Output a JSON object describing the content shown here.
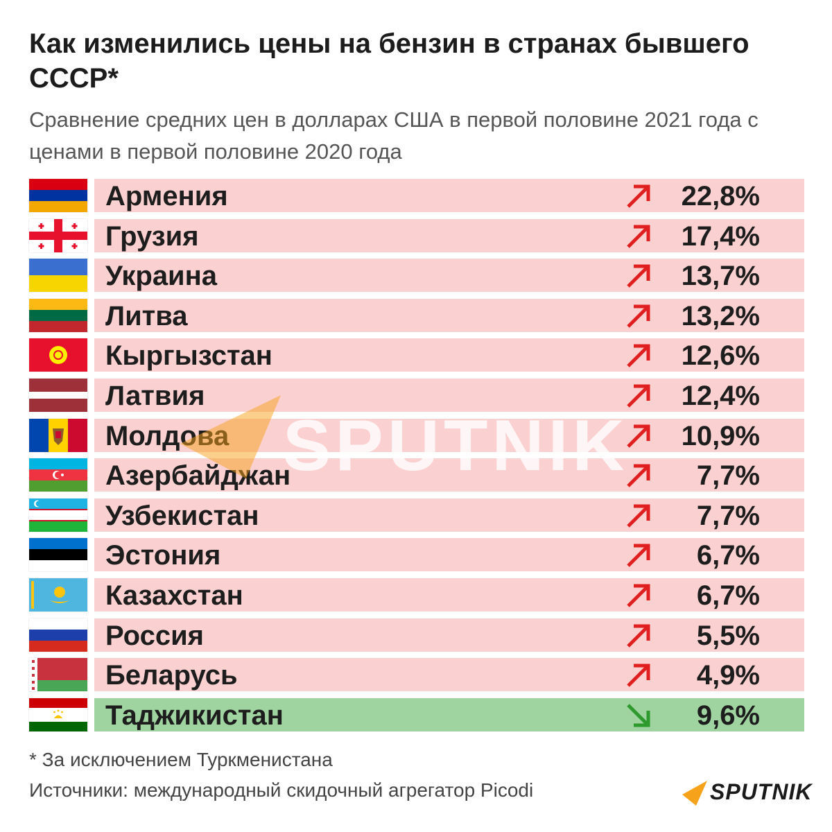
{
  "header": {
    "title": "Как изменились цены на бензин в странах бывшего СССР*",
    "subtitle": "Сравнение средних цен в долларах США в первой половине 2021 года с ценами в первой половине 2020 года"
  },
  "colors": {
    "increase_bar": "#fbd0d0",
    "decrease_bar": "#9fd39f",
    "increase_arrow": "#e02020",
    "decrease_arrow": "#2e9a2e",
    "brand_accent": "#f7a21b"
  },
  "rows": [
    {
      "country": "Армения",
      "change": "22,8%",
      "direction": "up",
      "flag": "armenia-flag"
    },
    {
      "country": "Грузия",
      "change": "17,4%",
      "direction": "up",
      "flag": "georgia-flag"
    },
    {
      "country": "Украина",
      "change": "13,7%",
      "direction": "up",
      "flag": "ukraine-flag"
    },
    {
      "country": "Литва",
      "change": "13,2%",
      "direction": "up",
      "flag": "lithuania-flag"
    },
    {
      "country": "Кыргызстан",
      "change": "12,6%",
      "direction": "up",
      "flag": "kyrgyzstan-flag"
    },
    {
      "country": "Латвия",
      "change": "12,4%",
      "direction": "up",
      "flag": "latvia-flag"
    },
    {
      "country": "Молдова",
      "change": "10,9%",
      "direction": "up",
      "flag": "moldova-flag"
    },
    {
      "country": "Азербайджан",
      "change": "7,7%",
      "direction": "up",
      "flag": "azerbaijan-flag"
    },
    {
      "country": "Узбекистан",
      "change": "7,7%",
      "direction": "up",
      "flag": "uzbekistan-flag"
    },
    {
      "country": "Эстония",
      "change": "6,7%",
      "direction": "up",
      "flag": "estonia-flag"
    },
    {
      "country": "Казахстан",
      "change": "6,7%",
      "direction": "up",
      "flag": "kazakhstan-flag"
    },
    {
      "country": "Россия",
      "change": "5,5%",
      "direction": "up",
      "flag": "russia-flag"
    },
    {
      "country": "Беларусь",
      "change": "4,9%",
      "direction": "up",
      "flag": "belarus-flag"
    },
    {
      "country": "Таджикистан",
      "change": "9,6%",
      "direction": "down",
      "flag": "tajikistan-flag"
    }
  ],
  "footer": {
    "footnote": "* За исключением Туркменистана",
    "source": "Источники: международный скидочный агрегатор Picodi",
    "logo_text": "SPUTNIK",
    "watermark_text": "SPUTNIK"
  }
}
